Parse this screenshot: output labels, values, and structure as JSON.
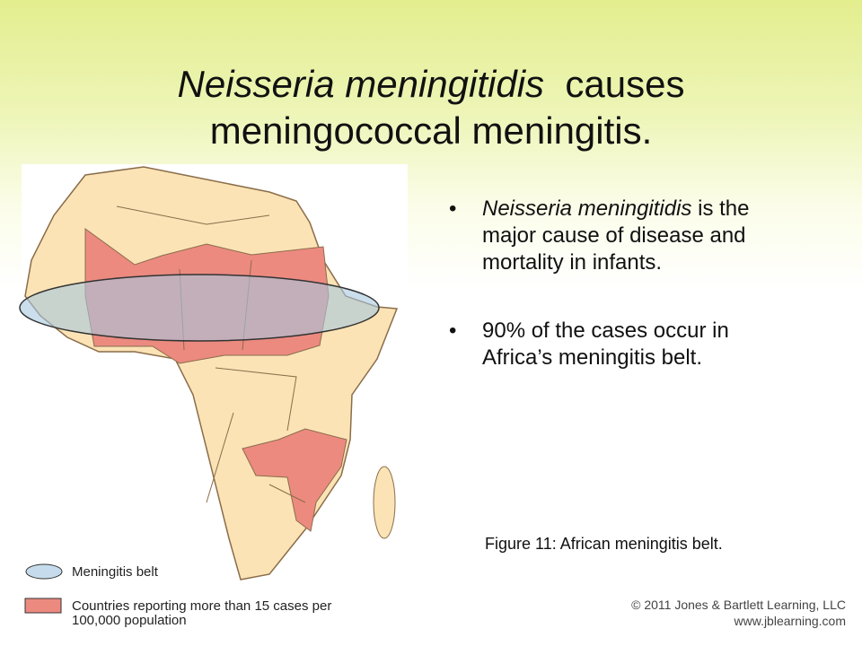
{
  "title": {
    "italic": "Neisseria meningitidis",
    "rest": "causes",
    "line2": "meningococcal meningitis."
  },
  "bullets": [
    {
      "italic": "Neisseria meningitidis",
      "rest": " is the major cause of disease and mortality in infants."
    },
    {
      "text": "90%  of the cases occur in Africa’s meningitis belt."
    }
  ],
  "caption": "Figure 11: African meningitis belt.",
  "legend": {
    "belt": "Meningitis belt",
    "countries_line1": "Countries reporting more than 15 cases per",
    "countries_line2": "100,000 population"
  },
  "copyright": {
    "line1": "© 2011 Jones & Bartlett Learning, LLC",
    "line2": "www.jblearning.com"
  }
}
